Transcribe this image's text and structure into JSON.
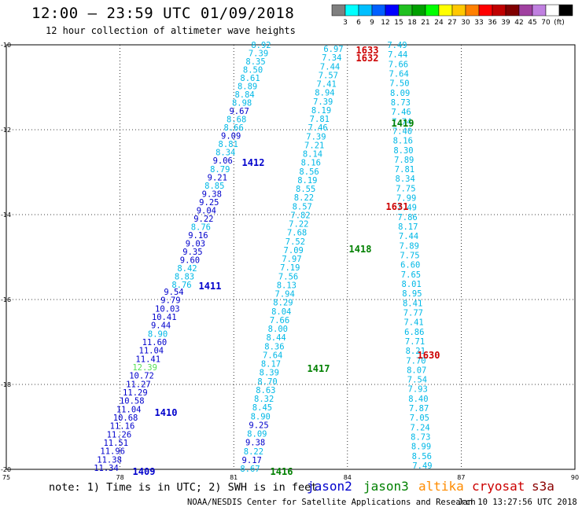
{
  "header": {
    "title": "12:00 – 23:59 UTC 01/09/2018",
    "subtitle": "12 hour collection of altimeter wave heights"
  },
  "colorbar": {
    "colors": [
      "#7f7f7f",
      "#00ffff",
      "#00bfff",
      "#0060ff",
      "#0000ff",
      "#20c020",
      "#00a000",
      "#00ff00",
      "#ffff00",
      "#ffc800",
      "#ff8000",
      "#ff0000",
      "#c00000",
      "#800000",
      "#a040a0",
      "#c080e0",
      "#ffffff",
      "#000000"
    ],
    "labels": [
      "3",
      "6",
      "9",
      "12",
      "15",
      "18",
      "21",
      "24",
      "27",
      "30",
      "33",
      "36",
      "39",
      "42",
      "45",
      "70",
      "(ft)"
    ]
  },
  "axes": {
    "lat_labels": [
      "-10",
      "-12",
      "-14",
      "-16",
      "-18",
      "-20"
    ],
    "lon_labels": [
      "75",
      "78",
      "81",
      "84",
      "87",
      "90"
    ]
  },
  "tracks": [
    {
      "id": "1412",
      "values": [
        "8.92",
        "7.39",
        "8.35",
        "8.50",
        "8.61",
        "8.89",
        "8.84",
        "8.98",
        "9.67",
        "8.68",
        "8.66",
        "9.09",
        "8.81",
        "8.34",
        "9.06",
        "8.79",
        "9.21",
        "8.85",
        "9.38",
        "9.25",
        "9.04",
        "9.22",
        "8.76",
        "9.16",
        "9.03",
        "9.35",
        "9.60",
        "8.42",
        "8.83",
        "8.76"
      ]
    },
    {
      "id": "1411",
      "values": [
        "9.54",
        "9.79",
        "10.03",
        "10.41",
        "9.44",
        "8.90",
        "11.60",
        "11.04",
        "11.41",
        "12.39",
        "10.72",
        "11.27",
        "11.29",
        "10.58",
        "11.04",
        "10.68",
        "11.16",
        "11.26",
        "11.51",
        "11.96",
        "11.38",
        "11.34"
      ]
    },
    {
      "id": "1416",
      "values": [
        "6.97",
        "7.34",
        "7.44",
        "7.57",
        "7.41",
        "8.94",
        "7.39",
        "8.19",
        "7.81",
        "7.46",
        "7.39",
        "7.21",
        "8.14",
        "8.16",
        "8.56",
        "8.19",
        "8.55",
        "8.22",
        "8.57",
        "7.82",
        "7.22",
        "7.68",
        "7.52",
        "7.09",
        "7.97",
        "7.19",
        "7.56",
        "8.13",
        "7.94",
        "8.29",
        "8.04",
        "7.66",
        "8.00",
        "8.44",
        "8.36",
        "7.64",
        "8.17",
        "8.39",
        "8.70",
        "8.63",
        "8.32",
        "8.45",
        "8.90",
        "9.25",
        "8.09",
        "9.38",
        "8.22",
        "9.17",
        "8.67"
      ]
    },
    {
      "id": "1419",
      "values": [
        "7.49",
        "7.44",
        "7.66",
        "7.64",
        "7.50",
        "8.09",
        "8.73",
        "7.46",
        "7.74",
        "7.40",
        "8.16",
        "8.30",
        "7.89",
        "7.81",
        "8.34",
        "7.75",
        "7.99",
        "7.49",
        "7.86",
        "8.17",
        "7.44",
        "7.89",
        "7.75",
        "6.60",
        "7.65",
        "8.01",
        "8.95",
        "8.41",
        "7.77",
        "7.41",
        "6.86",
        "7.71",
        "8.21",
        "7.70",
        "8.07",
        "7.54",
        "7.93",
        "8.40",
        "7.87",
        "7.05",
        "7.24",
        "8.73",
        "8.99",
        "8.56",
        "7.49"
      ]
    }
  ],
  "pass_labels": [
    {
      "text": "1633",
      "mission": "cryosat"
    },
    {
      "text": "1632",
      "mission": "cryosat"
    },
    {
      "text": "1419",
      "mission": "jason3"
    },
    {
      "text": "1412",
      "mission": "jason2"
    },
    {
      "text": "1631",
      "mission": "cryosat"
    },
    {
      "text": "1418",
      "mission": "jason3"
    },
    {
      "text": "1411",
      "mission": "jason2"
    },
    {
      "text": "1630",
      "mission": "cryosat"
    },
    {
      "text": "1417",
      "mission": "jason3"
    },
    {
      "text": "1410",
      "mission": "jason2"
    },
    {
      "text": "1416",
      "mission": "jason3"
    },
    {
      "text": "1409",
      "mission": "jason2"
    }
  ],
  "footer": {
    "note": "note: 1) Time is in UTC; 2) SWH is in feet",
    "satellites": [
      {
        "name": "jason2",
        "color": "#0000cc"
      },
      {
        "name": "jason3",
        "color": "#008000"
      },
      {
        "name": "altika",
        "color": "#ff8c00"
      },
      {
        "name": "cryosat",
        "color": "#cc0000"
      },
      {
        "name": "s3a",
        "color": "#8b0000"
      }
    ],
    "credit": "NOAA/NESDIS Center for Satellite Applications and Research",
    "timestamp": "Jan 10 13:27:56 UTC 2018"
  }
}
